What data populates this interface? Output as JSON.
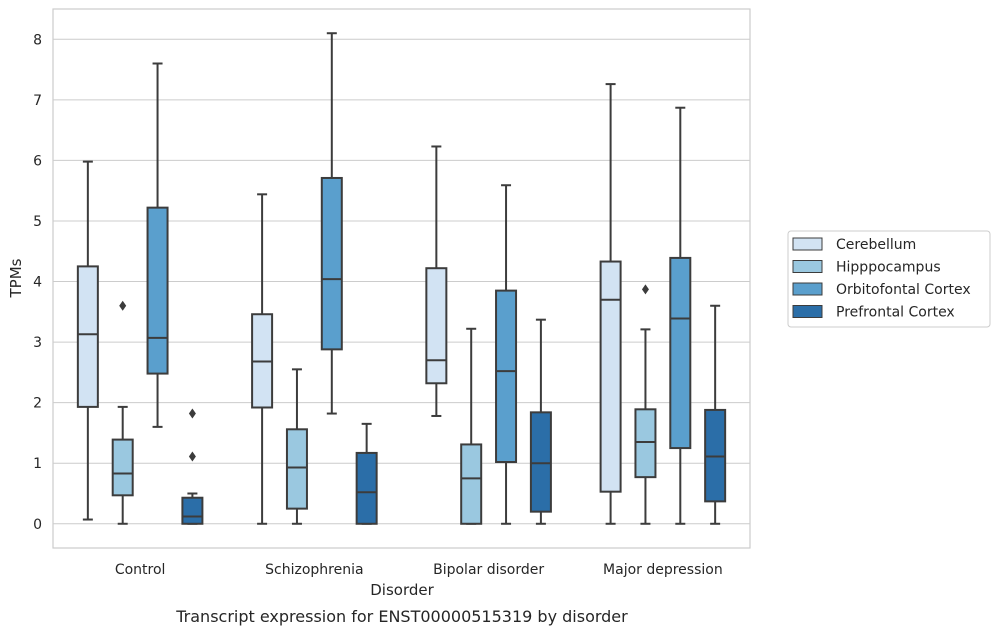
{
  "chart_data": {
    "type": "box",
    "xlabel": "Disorder",
    "ylabel": "TPMs",
    "caption": "Transcript expression for ENST00000515319 by disorder",
    "ylim": [
      -0.4,
      8.5
    ],
    "yticks": [
      0,
      1,
      2,
      3,
      4,
      5,
      6,
      7,
      8
    ],
    "grid": "horizontal",
    "legend_position": "right",
    "categories": [
      "Control",
      "Schizophrenia",
      "Bipolar disorder",
      "Major depression"
    ],
    "series": [
      {
        "name": "Cerebellum",
        "color": "#d2e3f3",
        "boxes": [
          {
            "whisker_low": 0.07,
            "q1": 1.93,
            "median": 3.13,
            "q3": 4.25,
            "whisker_high": 5.98,
            "outliers": []
          },
          {
            "whisker_low": 0.0,
            "q1": 1.92,
            "median": 2.68,
            "q3": 3.46,
            "whisker_high": 5.44,
            "outliers": []
          },
          {
            "whisker_low": 1.78,
            "q1": 2.32,
            "median": 2.7,
            "q3": 4.22,
            "whisker_high": 6.23,
            "outliers": []
          },
          {
            "whisker_low": 0.0,
            "q1": 0.53,
            "median": 3.7,
            "q3": 4.33,
            "whisker_high": 7.26,
            "outliers": []
          }
        ]
      },
      {
        "name": "Hipppocampus",
        "color": "#9ac8e0",
        "boxes": [
          {
            "whisker_low": 0.0,
            "q1": 0.47,
            "median": 0.83,
            "q3": 1.39,
            "whisker_high": 1.93,
            "outliers": [
              3.6
            ]
          },
          {
            "whisker_low": 0.0,
            "q1": 0.25,
            "median": 0.93,
            "q3": 1.56,
            "whisker_high": 2.55,
            "outliers": []
          },
          {
            "whisker_low": 0.0,
            "q1": 0.0,
            "median": 0.75,
            "q3": 1.31,
            "whisker_high": 3.22,
            "outliers": []
          },
          {
            "whisker_low": 0.0,
            "q1": 0.77,
            "median": 1.35,
            "q3": 1.89,
            "whisker_high": 3.21,
            "outliers": [
              3.87
            ]
          }
        ]
      },
      {
        "name": "Orbitofontal Cortex",
        "color": "#5a9fcd",
        "boxes": [
          {
            "whisker_low": 1.6,
            "q1": 2.48,
            "median": 3.07,
            "q3": 5.22,
            "whisker_high": 7.6,
            "outliers": []
          },
          {
            "whisker_low": 1.82,
            "q1": 2.88,
            "median": 4.04,
            "q3": 5.71,
            "whisker_high": 8.1,
            "outliers": []
          },
          {
            "whisker_low": 0.0,
            "q1": 1.02,
            "median": 2.52,
            "q3": 3.85,
            "whisker_high": 5.59,
            "outliers": []
          },
          {
            "whisker_low": 0.0,
            "q1": 1.25,
            "median": 3.39,
            "q3": 4.39,
            "whisker_high": 6.87,
            "outliers": []
          }
        ]
      },
      {
        "name": "Prefrontal Cortex",
        "color": "#2b6ea8",
        "boxes": [
          {
            "whisker_low": 0.0,
            "q1": 0.0,
            "median": 0.12,
            "q3": 0.43,
            "whisker_high": 0.5,
            "outliers": [
              1.11,
              1.82
            ]
          },
          {
            "whisker_low": 0.0,
            "q1": 0.0,
            "median": 0.52,
            "q3": 1.17,
            "whisker_high": 1.65,
            "outliers": []
          },
          {
            "whisker_low": 0.0,
            "q1": 0.2,
            "median": 1.0,
            "q3": 1.84,
            "whisker_high": 3.37,
            "outliers": []
          },
          {
            "whisker_low": 0.0,
            "q1": 0.37,
            "median": 1.11,
            "q3": 1.88,
            "whisker_high": 3.6,
            "outliers": []
          }
        ]
      }
    ]
  }
}
